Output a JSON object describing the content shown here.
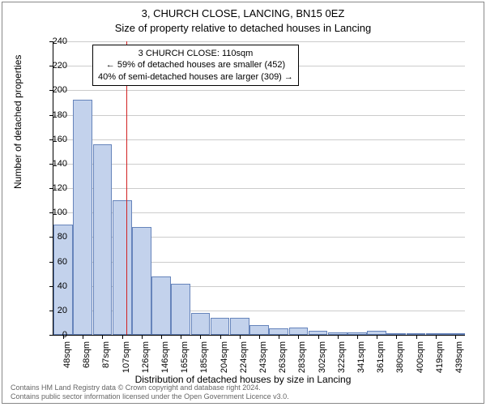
{
  "title_line1": "3, CHURCH CLOSE, LANCING, BN15 0EZ",
  "title_line2": "Size of property relative to detached houses in Lancing",
  "ylabel": "Number of detached properties",
  "xlabel": "Distribution of detached houses by size in Lancing",
  "footer_line1": "Contains HM Land Registry data © Crown copyright and database right 2024.",
  "footer_line2": "Contains public sector information licensed under the Open Government Licence v3.0.",
  "annotation": {
    "line1": "3 CHURCH CLOSE: 110sqm",
    "line2": "← 59% of detached houses are smaller (452)",
    "line3": "40% of semi-detached houses are larger (309) →"
  },
  "chart": {
    "type": "histogram",
    "ylim": [
      0,
      240
    ],
    "ytick_step": 20,
    "bar_fill": "#c3d2ec",
    "bar_stroke": "#6684bb",
    "grid_color": "#cccccc",
    "background_color": "#ffffff",
    "ref_line_x_index": 3.2,
    "ref_line_color": "#d22222",
    "x_labels": [
      "48sqm",
      "68sqm",
      "87sqm",
      "107sqm",
      "126sqm",
      "146sqm",
      "165sqm",
      "185sqm",
      "204sqm",
      "224sqm",
      "243sqm",
      "263sqm",
      "283sqm",
      "302sqm",
      "322sqm",
      "341sqm",
      "361sqm",
      "380sqm",
      "400sqm",
      "419sqm",
      "439sqm"
    ],
    "values": [
      90,
      192,
      156,
      110,
      88,
      48,
      42,
      18,
      14,
      14,
      8,
      5,
      6,
      3,
      2,
      2,
      3,
      1,
      1,
      1,
      1
    ]
  }
}
